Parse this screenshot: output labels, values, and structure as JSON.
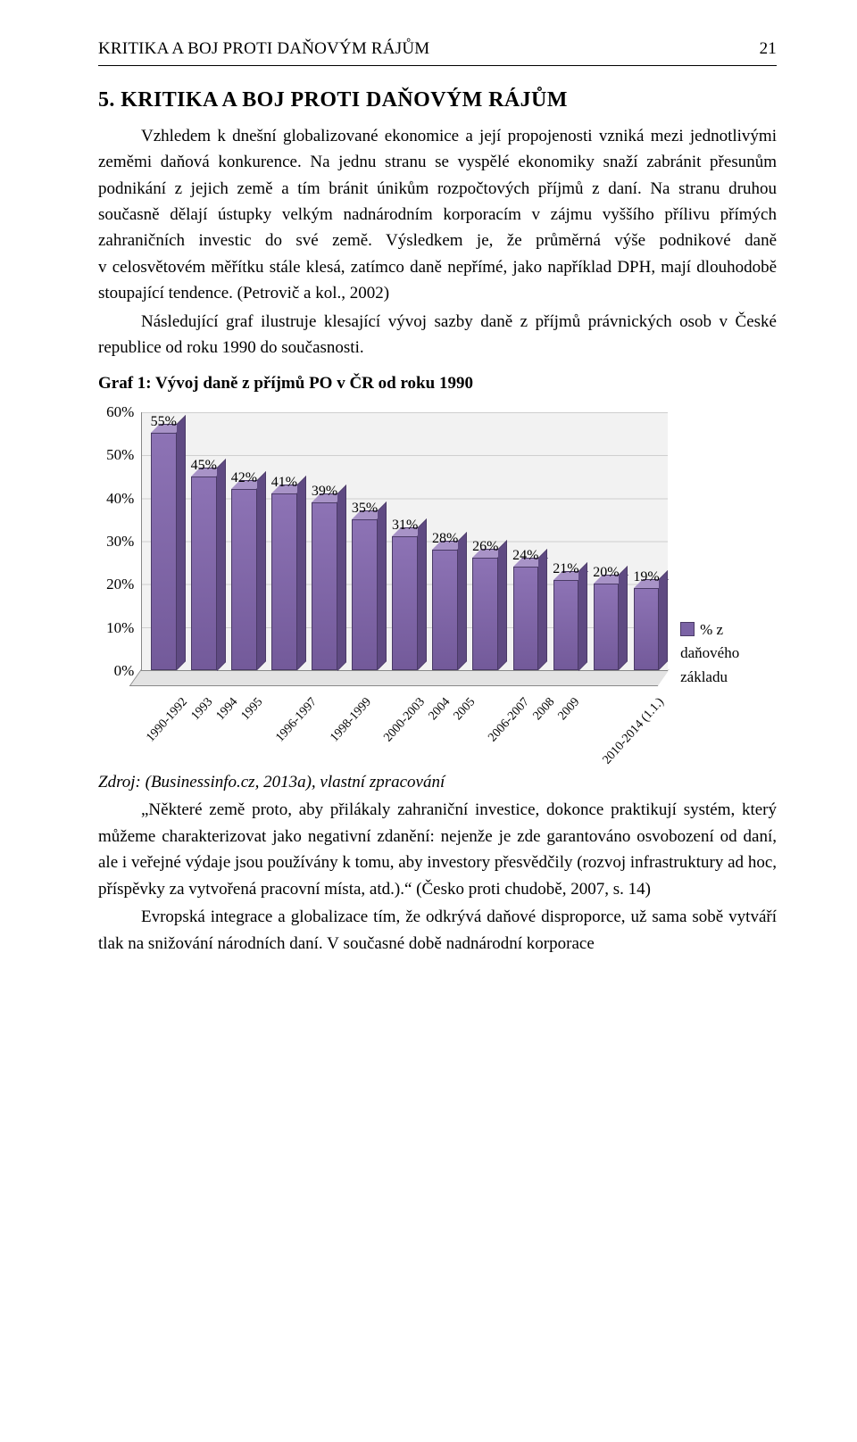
{
  "header": {
    "title": "KRITIKA A BOJ PROTI DAŇOVÝM RÁJŮM",
    "page_num": "21"
  },
  "section": {
    "num": "5.",
    "title": "KRITIKA A BOJ PROTI DAŇOVÝM RÁJŮM"
  },
  "p1_a": "Vzhledem k dnešní globalizované ekonomice a její propojenosti vzniká mezi jednotlivými zeměmi daňová konkurence. Na jednu stranu se vyspělé ekonomiky snaží zabránit přesunům podnikání z jejich země a tím bránit únikům rozpočtových příjmů z daní. Na stranu druhou současně dělají ústupky velkým nadnárodním korporacím v zájmu vyššího přílivu přímých zahraničních investic do své země. Výsledkem je, že průměrná výše podnikové daně v celosvětovém měřítku stále klesá, zatímco daně nepřímé, jako například DPH, mají dlouhodobě stoupající tendence. (Petrovič a kol., 2002)",
  "p1_b": "Následující graf ilustruje klesající vývoj sazby daně z příjmů právnických osob v České republice od roku 1990 do současnosti.",
  "chart_title": "Graf 1: Vývoj daně z příjmů PO v ČR od roku 1990",
  "chart": {
    "type": "bar",
    "y_max_pct": 60,
    "y_ticks": [
      "60%",
      "50%",
      "40%",
      "30%",
      "20%",
      "10%",
      "0%"
    ],
    "bars": [
      {
        "label": "1990-1992",
        "value_pct": 55,
        "value_label": "55%"
      },
      {
        "label": "1993",
        "value_pct": 45,
        "value_label": "45%"
      },
      {
        "label": "1994",
        "value_pct": 42,
        "value_label": "42%"
      },
      {
        "label": "1995",
        "value_pct": 41,
        "value_label": "41%"
      },
      {
        "label": "1996-1997",
        "value_pct": 39,
        "value_label": "39%"
      },
      {
        "label": "1998-1999",
        "value_pct": 35,
        "value_label": "35%"
      },
      {
        "label": "2000-2003",
        "value_pct": 31,
        "value_label": "31%"
      },
      {
        "label": "2004",
        "value_pct": 28,
        "value_label": "28%"
      },
      {
        "label": "2005",
        "value_pct": 26,
        "value_label": "26%"
      },
      {
        "label": "2006-2007",
        "value_pct": 24,
        "value_label": "24%"
      },
      {
        "label": "2008",
        "value_pct": 21,
        "value_label": "21%"
      },
      {
        "label": "2009",
        "value_pct": 20,
        "value_label": "20%"
      },
      {
        "label": "2010-2014 (1.1.)",
        "value_pct": 19,
        "value_label": "19%"
      }
    ],
    "legend_label": "% z daňovéhozákladu",
    "colors": {
      "bar_front": "#7b63a5",
      "bar_top": "#a893c7",
      "bar_side": "#5f4a82",
      "bar_border": "#4a3a66",
      "plot_bg": "#f2f2f2",
      "gridline": "#cfcfcf",
      "axis": "#888888"
    },
    "fontsize_axis": 17,
    "fontsize_value": 16,
    "fontsize_xcat": 14
  },
  "source_prefix": "Zdroj: (Businessinfo.cz, 2013a), vlastní zpracování",
  "p2": "„Některé země proto, aby přilákaly zahraniční investice, dokonce praktikují systém, který můžeme charakterizovat jako negativní zdanění: nejenže je zde garantováno osvobození od daní, ale i veřejné výdaje jsou používány k tomu, aby investory přesvědčily (rozvoj infrastruktury ad hoc, příspěvky za vytvořená pracovní místa, atd.).“ (Česko proti chudobě, 2007, s. 14)",
  "p3": "Evropská integrace a globalizace tím, že odkrývá daňové disproporce, už sama sobě vytváří tlak na snižování národních daní. V současné době nadnárodní korporace"
}
